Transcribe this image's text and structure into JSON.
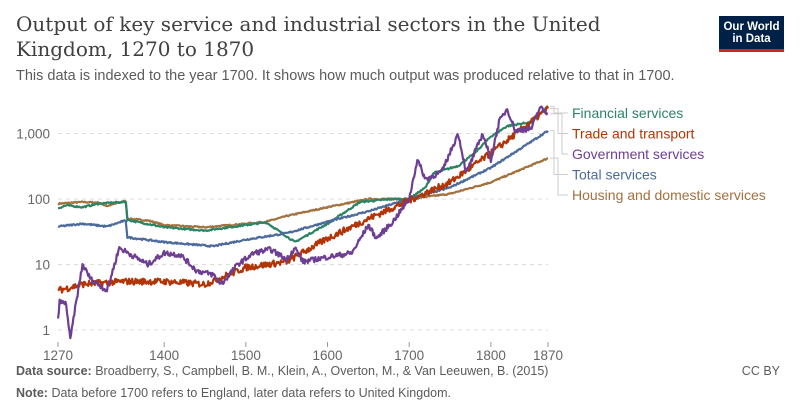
{
  "header": {
    "title": "Output of key service and industrial sectors in the United Kingdom, 1270 to 1870",
    "subtitle": "This data is indexed to the year 1700. It shows how much output was produced relative to that in 1700.",
    "logo_line1": "Our World",
    "logo_line2": "in Data"
  },
  "footer": {
    "source_label": "Data source:",
    "source": "Broadberry, S., Campbell, B. M., Klein, A., Overton, M., & Van Leeuwen, B. (2015)",
    "note_label": "Note:",
    "note": "Data before 1700 refers to England, later data refers to United Kingdom.",
    "license": "CC BY"
  },
  "chart_data": {
    "type": "line",
    "title": "Output of key service and industrial sectors in the United Kingdom, 1270 to 1870",
    "xlabel": "",
    "ylabel": "",
    "yscale": "log",
    "ylim": [
      0.6,
      3000
    ],
    "xlim": [
      1270,
      1870
    ],
    "x_ticks": [
      "1270",
      "1400",
      "1500",
      "1600",
      "1700",
      "1800",
      "1870"
    ],
    "x_tick_values": [
      1270,
      1400,
      1500,
      1600,
      1700,
      1800,
      1870
    ],
    "y_ticks": [
      "1",
      "10",
      "100",
      "1,000"
    ],
    "y_tick_values": [
      1,
      10,
      100,
      1000
    ],
    "grid": "horizontal-dashed",
    "legend": "right",
    "series": [
      {
        "name": "Housing and domestic services",
        "color": "#a2713e",
        "jitter": 0.01,
        "points": [
          [
            1270,
            85
          ],
          [
            1300,
            90
          ],
          [
            1320,
            88
          ],
          [
            1330,
            78
          ],
          [
            1350,
            92
          ],
          [
            1353,
            92
          ],
          [
            1355,
            50
          ],
          [
            1380,
            47
          ],
          [
            1400,
            40
          ],
          [
            1450,
            37
          ],
          [
            1500,
            42
          ],
          [
            1525,
            45
          ],
          [
            1550,
            55
          ],
          [
            1600,
            75
          ],
          [
            1650,
            100
          ],
          [
            1680,
            100
          ],
          [
            1700,
            100
          ],
          [
            1750,
            120
          ],
          [
            1800,
            180
          ],
          [
            1870,
            420
          ]
        ]
      },
      {
        "name": "Financial services",
        "color": "#2c8465",
        "jitter": 0.012,
        "points": [
          [
            1270,
            72
          ],
          [
            1280,
            80
          ],
          [
            1300,
            75
          ],
          [
            1320,
            85
          ],
          [
            1350,
            90
          ],
          [
            1353,
            90
          ],
          [
            1355,
            48
          ],
          [
            1400,
            37
          ],
          [
            1450,
            33
          ],
          [
            1500,
            40
          ],
          [
            1525,
            44
          ],
          [
            1560,
            22
          ],
          [
            1600,
            42
          ],
          [
            1640,
            90
          ],
          [
            1680,
            100
          ],
          [
            1700,
            100
          ],
          [
            1720,
            150
          ],
          [
            1730,
            250
          ],
          [
            1760,
            320
          ],
          [
            1780,
            500
          ],
          [
            1800,
            900
          ],
          [
            1820,
            1300
          ],
          [
            1850,
            1500
          ],
          [
            1870,
            2600
          ]
        ]
      },
      {
        "name": "Total services",
        "color": "#4c6a9c",
        "jitter": 0.012,
        "points": [
          [
            1270,
            38
          ],
          [
            1300,
            42
          ],
          [
            1330,
            38
          ],
          [
            1350,
            46
          ],
          [
            1353,
            46
          ],
          [
            1355,
            26
          ],
          [
            1400,
            22
          ],
          [
            1460,
            19
          ],
          [
            1500,
            24
          ],
          [
            1550,
            30
          ],
          [
            1600,
            45
          ],
          [
            1650,
            65
          ],
          [
            1700,
            100
          ],
          [
            1750,
            150
          ],
          [
            1800,
            300
          ],
          [
            1870,
            1100
          ]
        ]
      },
      {
        "name": "Trade and transport",
        "color": "#b13507",
        "jitter": 0.05,
        "points": [
          [
            1270,
            4
          ],
          [
            1300,
            5
          ],
          [
            1350,
            5.5
          ],
          [
            1400,
            5.5
          ],
          [
            1450,
            5
          ],
          [
            1500,
            9
          ],
          [
            1550,
            11
          ],
          [
            1600,
            25
          ],
          [
            1650,
            50
          ],
          [
            1700,
            95
          ],
          [
            1750,
            180
          ],
          [
            1800,
            500
          ],
          [
            1870,
            2400
          ]
        ]
      },
      {
        "name": "Government services",
        "color": "#6d3e91",
        "jitter": 0.04,
        "points": [
          [
            1270,
            1.5
          ],
          [
            1272,
            2.7
          ],
          [
            1280,
            2.5
          ],
          [
            1285,
            0.7
          ],
          [
            1290,
            1.8
          ],
          [
            1300,
            10
          ],
          [
            1310,
            6
          ],
          [
            1330,
            4
          ],
          [
            1345,
            18
          ],
          [
            1360,
            14
          ],
          [
            1380,
            10
          ],
          [
            1400,
            15
          ],
          [
            1420,
            14
          ],
          [
            1440,
            8
          ],
          [
            1460,
            7
          ],
          [
            1470,
            5
          ],
          [
            1490,
            10
          ],
          [
            1510,
            15
          ],
          [
            1530,
            17
          ],
          [
            1550,
            12
          ],
          [
            1560,
            18
          ],
          [
            1570,
            11
          ],
          [
            1600,
            13
          ],
          [
            1630,
            15
          ],
          [
            1650,
            40
          ],
          [
            1660,
            25
          ],
          [
            1680,
            45
          ],
          [
            1700,
            100
          ],
          [
            1710,
            400
          ],
          [
            1720,
            200
          ],
          [
            1740,
            260
          ],
          [
            1760,
            1000
          ],
          [
            1770,
            250
          ],
          [
            1790,
            1000
          ],
          [
            1800,
            400
          ],
          [
            1810,
            1500
          ],
          [
            1820,
            2400
          ],
          [
            1830,
            1100
          ],
          [
            1850,
            1200
          ],
          [
            1860,
            2500
          ],
          [
            1870,
            2000
          ]
        ]
      }
    ],
    "legend_order": [
      "Financial services",
      "Trade and transport",
      "Government services",
      "Total services",
      "Housing and domestic services"
    ]
  }
}
